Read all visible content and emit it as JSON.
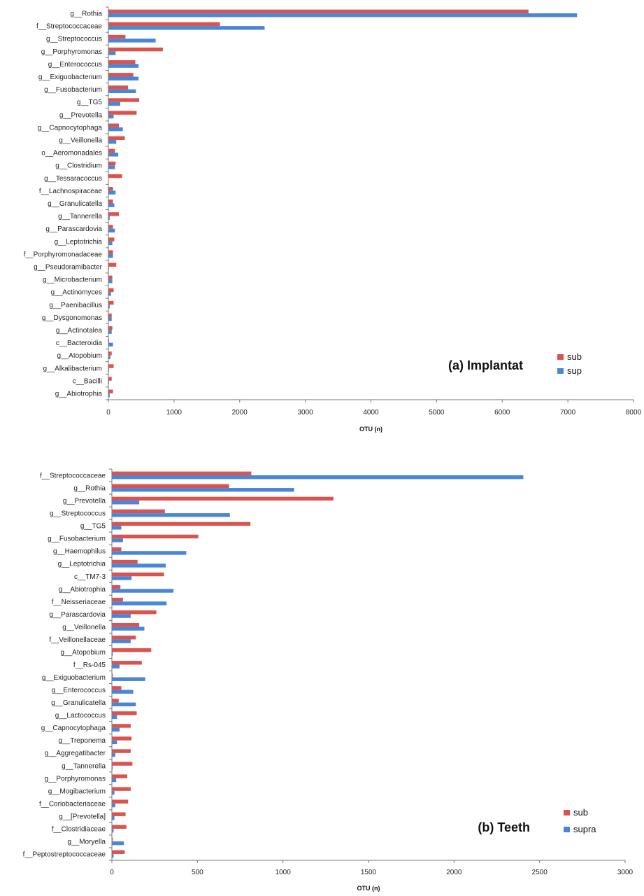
{
  "colors": {
    "sub": "#d9534f",
    "sup": "#4a86d8",
    "axis": "#777777"
  },
  "chart_data": [
    {
      "type": "bar",
      "orientation": "horizontal",
      "title": "(a) Implantat",
      "xlabel": "OTU (n)",
      "xlim": [
        0,
        8000
      ],
      "xticks": [
        0,
        1000,
        2000,
        3000,
        4000,
        5000,
        6000,
        7000,
        8000
      ],
      "legend_position": "bottom-right",
      "categories": [
        "g__Rothia",
        "f__Streptococcaceae",
        "g__Streptococcus",
        "g__Porphyromonas",
        "g__Enterococcus",
        "g__Exiguobacterium",
        "g__Fusobacterium",
        "g__TG5",
        "g__Prevotella",
        "g__Capnocytophaga",
        "g__Veillonella",
        "o__Aeromonadales",
        "g__Clostridium",
        "g__Tessaracoccus",
        "f__Lachnospiraceae",
        "g__Granulicatella",
        "g__Tannerella",
        "g__Parascardovia",
        "g__Leptotrichia",
        "f__Porphyromonadaceae",
        "g__Pseudoramibacter",
        "g__Microbacterium",
        "g__Actinomyces",
        "g__Paenibacillus",
        "g__Dysgonomonas",
        "g__Actinotalea",
        "c__Bacteroidia",
        "g__Atopobium",
        "g__Alkalibacterium",
        "c__Bacilli",
        "g__Abiotrophia"
      ],
      "series": [
        {
          "name": "sub",
          "values": [
            6400,
            1700,
            260,
            830,
            410,
            380,
            300,
            470,
            430,
            160,
            250,
            100,
            110,
            210,
            70,
            70,
            160,
            70,
            90,
            70,
            120,
            60,
            80,
            80,
            50,
            60,
            10,
            50,
            80,
            50,
            70
          ]
        },
        {
          "name": "sup",
          "values": [
            7140,
            2380,
            720,
            110,
            460,
            460,
            420,
            180,
            80,
            220,
            120,
            150,
            100,
            0,
            110,
            90,
            20,
            100,
            60,
            70,
            10,
            60,
            40,
            20,
            50,
            50,
            70,
            30,
            10,
            10,
            20
          ]
        }
      ]
    },
    {
      "type": "bar",
      "orientation": "horizontal",
      "title": "(b) Teeth",
      "xlabel": "OTU (n)",
      "xlim": [
        0,
        3000
      ],
      "xticks": [
        0,
        500,
        1000,
        1500,
        2000,
        2500,
        3000
      ],
      "legend_position": "bottom-right",
      "categories": [
        "f__Streptococcaceae",
        "g__Rothia",
        "g__Prevotella",
        "g__Streptococcus",
        "g__TG5",
        "g__Fusobacterium",
        "g__Haemophilus",
        "g__Leptotrichia",
        "c__TM7-3",
        "g__Abiotrophia",
        "f__Neisseriaceae",
        "g__Parascardovia",
        "g__Veillonella",
        "f__Veillonellaceae",
        "g__Atopobium",
        "f__Rs-045",
        "g__Exiguobacterium",
        "g__Enterococcus",
        "g__Granulicatella",
        "g__Lactococcus",
        "g__Capnocytophaga",
        "g__Treponema",
        "g__Aggregatibacter",
        "g__Tannerella",
        "g__Porphyromonas",
        "g__Mogibacterium",
        "f__Coriobacteriaceae",
        "g__[Prevotella]",
        "f__Clostridiaceae",
        "g__Moryella",
        "f__Peptostreptococcaceae"
      ],
      "series": [
        {
          "name": "sub",
          "values": [
            815,
            685,
            1295,
            310,
            810,
            505,
            55,
            150,
            305,
            50,
            65,
            260,
            160,
            140,
            230,
            175,
            5,
            55,
            40,
            145,
            110,
            115,
            110,
            120,
            90,
            110,
            95,
            80,
            85,
            5,
            75
          ]
        },
        {
          "name": "supra",
          "values": [
            2405,
            1065,
            160,
            690,
            55,
            65,
            435,
            315,
            115,
            360,
            320,
            110,
            190,
            110,
            5,
            45,
            195,
            125,
            140,
            30,
            45,
            30,
            20,
            5,
            25,
            15,
            20,
            15,
            10,
            70,
            10
          ]
        }
      ]
    }
  ]
}
